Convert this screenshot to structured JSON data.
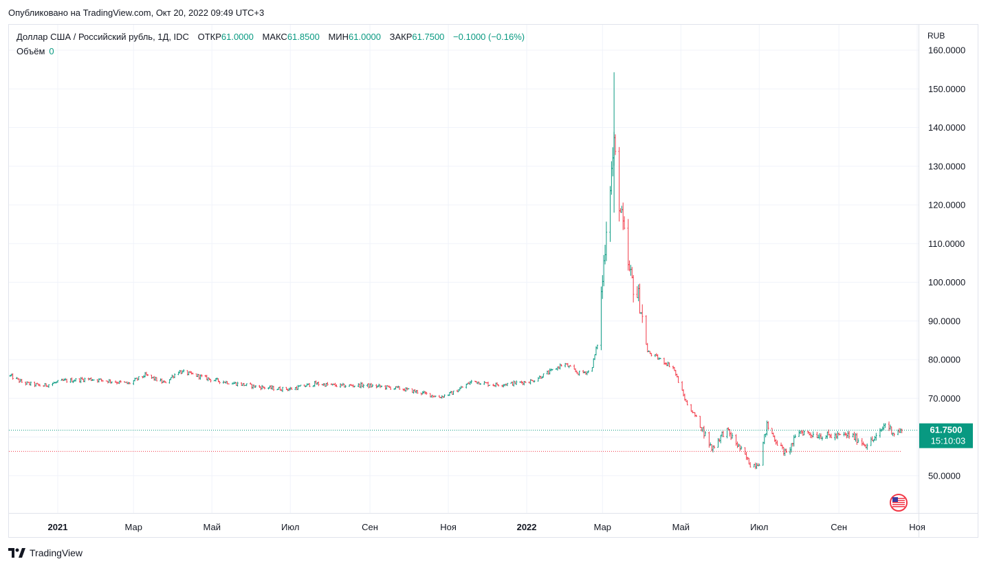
{
  "published_line": "Опубликовано на TradingView.com, Окт 20, 2022 09:49 UTC+3",
  "legend": {
    "symbol": "Доллар США / Российский рубль, 1Д, IDC",
    "open_label": "ОТКР",
    "open_value": "61.0000",
    "high_label": "МАКС",
    "high_value": "61.8500",
    "low_label": "МИН",
    "low_value": "61.0000",
    "close_label": "ЗАКР",
    "close_value": "61.7500",
    "change": "−0.1000 (−0.16%)"
  },
  "volume": {
    "label": "Объём",
    "value": "0"
  },
  "footer": {
    "brand": "TradingView"
  },
  "colors": {
    "up": "#089981",
    "down": "#f23645",
    "grid": "#f0f3fa",
    "text": "#131722"
  },
  "chart_data": {
    "type": "bar",
    "style": "ohlc",
    "currency": "RUB",
    "last_price": "61.7500",
    "countdown": "15:10:03",
    "ylim": [
      41,
      162
    ],
    "y_ticks": [
      "50.0000",
      "60.0000",
      "70.0000",
      "80.0000",
      "90.0000",
      "100.0000",
      "110.0000",
      "120.0000",
      "130.0000",
      "140.0000",
      "150.0000",
      "160.0000"
    ],
    "x_ticks": [
      {
        "label": "2021",
        "date": "2021-01-01",
        "bold": true
      },
      {
        "label": "Мар",
        "date": "2021-03-01",
        "bold": false
      },
      {
        "label": "Май",
        "date": "2021-05-01",
        "bold": false
      },
      {
        "label": "Июл",
        "date": "2021-07-01",
        "bold": false
      },
      {
        "label": "Сен",
        "date": "2021-09-01",
        "bold": false
      },
      {
        "label": "Ноя",
        "date": "2021-11-01",
        "bold": false
      },
      {
        "label": "2022",
        "date": "2022-01-01",
        "bold": true
      },
      {
        "label": "Мар",
        "date": "2022-03-01",
        "bold": false
      },
      {
        "label": "Май",
        "date": "2022-05-01",
        "bold": false
      },
      {
        "label": "Июл",
        "date": "2022-07-01",
        "bold": false
      },
      {
        "label": "Сен",
        "date": "2022-09-01",
        "bold": false
      },
      {
        "label": "Ноя",
        "date": "2022-11-01",
        "bold": false
      }
    ],
    "x_range": [
      "2020-11-24",
      "2022-11-02"
    ],
    "close_anchors": [
      [
        "2020-11-25",
        75.8
      ],
      [
        "2020-12-05",
        74.0
      ],
      [
        "2020-12-20",
        73.2
      ],
      [
        "2021-01-05",
        74.5
      ],
      [
        "2021-01-25",
        75.0
      ],
      [
        "2021-02-10",
        74.5
      ],
      [
        "2021-02-25",
        73.8
      ],
      [
        "2021-03-10",
        76.0
      ],
      [
        "2021-03-25",
        74.0
      ],
      [
        "2021-04-05",
        77.0
      ],
      [
        "2021-04-20",
        75.8
      ],
      [
        "2021-05-01",
        74.8
      ],
      [
        "2021-05-20",
        73.8
      ],
      [
        "2021-06-05",
        73.0
      ],
      [
        "2021-06-20",
        72.5
      ],
      [
        "2021-07-01",
        72.4
      ],
      [
        "2021-07-20",
        73.8
      ],
      [
        "2021-08-10",
        73.2
      ],
      [
        "2021-08-25",
        73.4
      ],
      [
        "2021-09-10",
        73.0
      ],
      [
        "2021-09-25",
        72.5
      ],
      [
        "2021-10-10",
        71.5
      ],
      [
        "2021-10-25",
        70.3
      ],
      [
        "2021-11-05",
        71.5
      ],
      [
        "2021-11-20",
        74.5
      ],
      [
        "2021-12-05",
        73.5
      ],
      [
        "2021-12-20",
        73.8
      ],
      [
        "2022-01-05",
        74.5
      ],
      [
        "2022-01-20",
        77.0
      ],
      [
        "2022-01-30",
        79.0
      ],
      [
        "2022-02-10",
        76.5
      ],
      [
        "2022-02-20",
        77.0
      ],
      [
        "2022-02-25",
        84.0
      ],
      [
        "2022-03-02",
        105.0
      ],
      [
        "2022-03-05",
        120.0
      ],
      [
        "2022-03-10",
        135.0
      ],
      [
        "2022-03-15",
        118.0
      ],
      [
        "2022-03-22",
        102.0
      ],
      [
        "2022-03-30",
        95.0
      ],
      [
        "2022-04-05",
        82.0
      ],
      [
        "2022-04-15",
        80.0
      ],
      [
        "2022-04-25",
        78.0
      ],
      [
        "2022-05-05",
        69.0
      ],
      [
        "2022-05-15",
        64.0
      ],
      [
        "2022-05-25",
        57.0
      ],
      [
        "2022-06-05",
        62.0
      ],
      [
        "2022-06-15",
        57.5
      ],
      [
        "2022-06-25",
        52.5
      ],
      [
        "2022-07-01",
        53.5
      ],
      [
        "2022-07-07",
        63.0
      ],
      [
        "2022-07-15",
        58.5
      ],
      [
        "2022-07-22",
        55.5
      ],
      [
        "2022-08-01",
        61.5
      ],
      [
        "2022-08-15",
        60.5
      ],
      [
        "2022-08-30",
        60.2
      ],
      [
        "2022-09-10",
        60.5
      ],
      [
        "2022-09-22",
        58.0
      ],
      [
        "2022-10-01",
        60.0
      ],
      [
        "2022-10-07",
        63.5
      ],
      [
        "2022-10-14",
        61.0
      ],
      [
        "2022-10-20",
        61.75
      ]
    ],
    "price_lines": [
      61.75,
      56.3
    ]
  }
}
